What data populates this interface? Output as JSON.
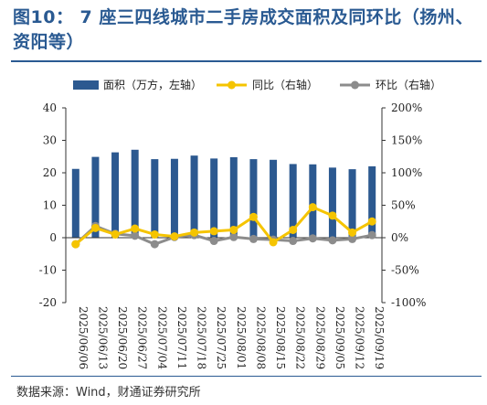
{
  "title": "图10：   7 座三四线城市二手房成交面积及同环比（扬州、资阳等）",
  "source": "数据来源：Wind，财通证券研究所",
  "colors": {
    "bar": "#2c5990",
    "yoy": "#f5c400",
    "mom": "#8c8c8c",
    "title": "#2a5a92"
  },
  "chart_data": {
    "type": "bar",
    "categories": [
      "2025/06/06",
      "2025/06/13",
      "2025/06/20",
      "2025/06/27",
      "2025/07/04",
      "2025/07/11",
      "2025/07/18",
      "2025/07/25",
      "2025/08/01",
      "2025/08/08",
      "2025/08/15",
      "2025/08/22",
      "2025/08/29",
      "2025/09/05",
      "2025/09/12",
      "2025/09/19"
    ],
    "series": [
      {
        "name": "面积（万方，左轴）",
        "type": "bar",
        "axis": "left",
        "values": [
          21.2,
          24.9,
          26.3,
          27.1,
          24.2,
          24.3,
          25.3,
          24.4,
          24.8,
          24.2,
          24.0,
          22.7,
          22.6,
          21.6,
          21.1,
          22.0
        ]
      },
      {
        "name": "同比（右轴）",
        "type": "line",
        "axis": "right",
        "values": [
          -10,
          15,
          5,
          14,
          5,
          2,
          8,
          10,
          12,
          32,
          -7,
          12,
          47,
          34,
          8,
          25
        ]
      },
      {
        "name": "环比（右轴）",
        "type": "line",
        "axis": "right",
        "values": [
          -10,
          18,
          6,
          3,
          -10,
          1,
          4,
          -5,
          1,
          -2,
          -3,
          -5,
          -1,
          -4,
          -2,
          4
        ]
      }
    ],
    "left_axis": {
      "ticks": [
        "-20",
        "-10",
        "0",
        "10",
        "20",
        "30",
        "40"
      ],
      "ylim": [
        -20,
        40
      ]
    },
    "right_axis": {
      "ticks": [
        "-100%",
        "-50%",
        "0%",
        "50%",
        "100%",
        "150%",
        "200%"
      ],
      "ylim": [
        -100,
        200
      ]
    },
    "legend_position": "top",
    "grid": false
  }
}
